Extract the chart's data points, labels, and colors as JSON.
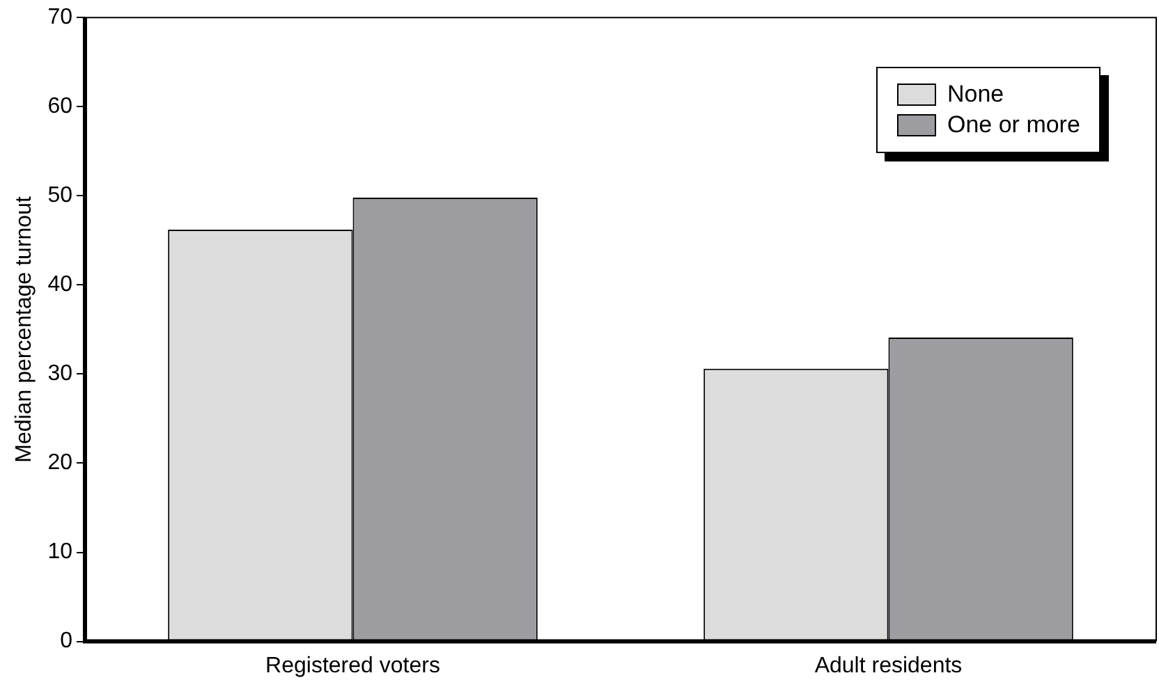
{
  "chart_data": {
    "type": "bar",
    "ylabel": "Median percentage turnout",
    "categories": [
      "Registered voters",
      "Adult residents"
    ],
    "series": [
      {
        "name": "None",
        "color": "#dcdcdc",
        "values": [
          46.2,
          30.6
        ]
      },
      {
        "name": "One or more",
        "color": "#9d9da1",
        "values": [
          49.8,
          34.1
        ]
      }
    ],
    "ylim": [
      0,
      70
    ],
    "yticks": [
      0,
      10,
      20,
      30,
      40,
      50,
      60,
      70
    ],
    "grid": false,
    "legend": "top right"
  }
}
